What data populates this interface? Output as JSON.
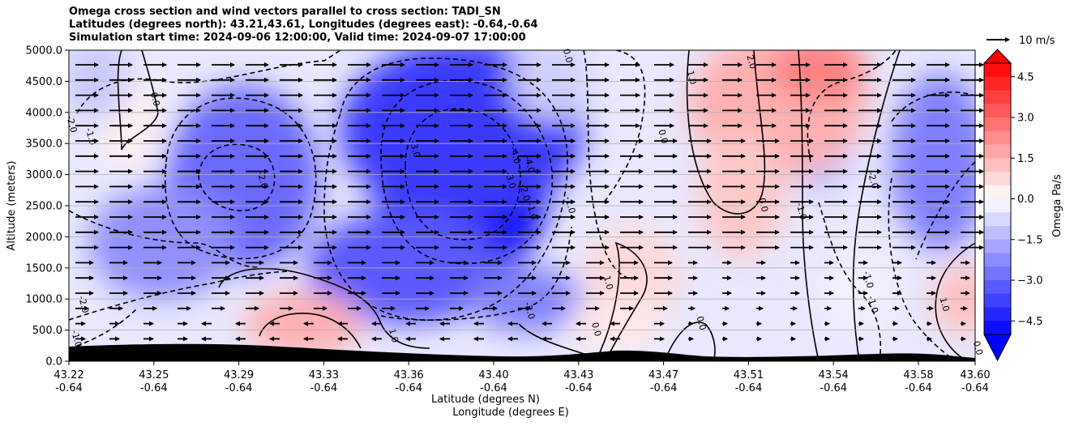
{
  "chart_data": {
    "type": "heatmap",
    "title_lines": [
      "Omega cross section and wind vectors parallel to cross section: TADI_SN",
      "Latitudes (degrees north): 43.21,43.61, Longitudes (degrees east): -0.64,-0.64",
      "Simulation start time: 2024-09-06 12:00:00, Valid time: 2024-09-07 17:00:00"
    ],
    "ylabel": "Altitude (meters)",
    "xlabel_lines": [
      "Latitude (degrees N)",
      "Longitude (degrees E)"
    ],
    "ylim": [
      0,
      5000
    ],
    "y_ticks": [
      "0.0",
      "500.0",
      "1000.0",
      "1500.0",
      "2000.0",
      "2500.0",
      "3000.0",
      "3500.0",
      "4000.0",
      "4500.0",
      "5000.0"
    ],
    "x_ticks": [
      {
        "lat": "43.22",
        "lon": "-0.64"
      },
      {
        "lat": "43.25",
        "lon": "-0.64"
      },
      {
        "lat": "43.29",
        "lon": "-0.64"
      },
      {
        "lat": "43.33",
        "lon": "-0.64"
      },
      {
        "lat": "43.36",
        "lon": "-0.64"
      },
      {
        "lat": "43.40",
        "lon": "-0.64"
      },
      {
        "lat": "43.43",
        "lon": "-0.64"
      },
      {
        "lat": "43.47",
        "lon": "-0.64"
      },
      {
        "lat": "43.51",
        "lon": "-0.64"
      },
      {
        "lat": "43.54",
        "lon": "-0.64"
      },
      {
        "lat": "43.58",
        "lon": "-0.64"
      },
      {
        "lat": "43.60",
        "lon": "-0.64"
      }
    ],
    "colorbar": {
      "label": "Omega Pa/s",
      "range": [
        -5,
        5
      ],
      "ticks": [
        "4.5",
        "3.0",
        "1.5",
        "0.0",
        "−1.5",
        "−3.0",
        "−4.5"
      ],
      "tick_values": [
        4.5,
        3.0,
        1.5,
        0.0,
        -1.5,
        -3.0,
        -4.5
      ],
      "extend": "both",
      "colormap": "bwr"
    },
    "quiver_key": {
      "label": "10 m/s",
      "speed": 10
    },
    "contour_labels": [
      {
        "text": "-2.0",
        "lat": 43.22,
        "alt": 3800
      },
      {
        "text": "-1.0",
        "lat": 43.228,
        "alt": 3600
      },
      {
        "text": "0.0",
        "lat": 43.255,
        "alt": 4200
      },
      {
        "text": "-2.0",
        "lat": 43.3,
        "alt": 2900
      },
      {
        "text": "-3.0",
        "lat": 43.364,
        "alt": 3400
      },
      {
        "text": "-4.0",
        "lat": 43.406,
        "alt": 3300
      },
      {
        "text": "-4.0",
        "lat": 43.412,
        "alt": 3150
      },
      {
        "text": "-3.0",
        "lat": 43.404,
        "alt": 2900
      },
      {
        "text": "-2.0",
        "lat": 43.41,
        "alt": 2700
      },
      {
        "text": "-1.0",
        "lat": 43.413,
        "alt": 2400
      },
      {
        "text": "-2.0",
        "lat": 43.412,
        "alt": 800
      },
      {
        "text": "-1.0",
        "lat": 43.429,
        "alt": 2500
      },
      {
        "text": "0.0",
        "lat": 43.428,
        "alt": 4900
      },
      {
        "text": "-2.0",
        "lat": 43.225,
        "alt": 900
      },
      {
        "text": "-1.0",
        "lat": 43.222,
        "alt": 350
      },
      {
        "text": "1.0",
        "lat": 43.355,
        "alt": 400
      },
      {
        "text": "1.0",
        "lat": 43.445,
        "alt": 1250
      },
      {
        "text": "0.0",
        "lat": 43.44,
        "alt": 500
      },
      {
        "text": "0.0",
        "lat": 43.468,
        "alt": 3600
      },
      {
        "text": "1.0",
        "lat": 43.48,
        "alt": 4550
      },
      {
        "text": "2.0",
        "lat": 43.505,
        "alt": 4800
      },
      {
        "text": "0.0",
        "lat": 43.484,
        "alt": 600
      },
      {
        "text": "0.0",
        "lat": 43.51,
        "alt": 2500
      },
      {
        "text": "-1.0",
        "lat": 43.526,
        "alt": 2400
      },
      {
        "text": "-2.0",
        "lat": 43.556,
        "alt": 2900
      },
      {
        "text": "-1.0",
        "lat": 43.554,
        "alt": 1300
      },
      {
        "text": "-1.0",
        "lat": 43.556,
        "alt": 900
      },
      {
        "text": "1.0",
        "lat": 43.586,
        "alt": 900
      },
      {
        "text": "0.0",
        "lat": 43.6,
        "alt": 200
      }
    ]
  }
}
